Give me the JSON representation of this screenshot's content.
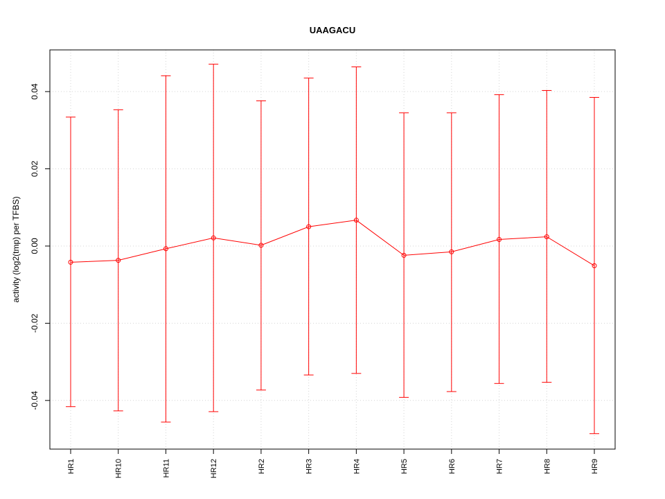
{
  "chart_data": {
    "type": "line",
    "title": "UAAGACU",
    "xlabel": "",
    "ylabel": "activity (log2(tmp) per TFBS)",
    "categories": [
      "HR1",
      "HR10",
      "HR11",
      "HR12",
      "HR2",
      "HR3",
      "HR4",
      "HR5",
      "HR6",
      "HR7",
      "HR8",
      "HR9"
    ],
    "series": [
      {
        "values": [
          -0.0042,
          -0.0037,
          -0.0007,
          0.0021,
          0.0002,
          0.005,
          0.0067,
          -0.0024,
          -0.0015,
          0.0017,
          0.0024,
          -0.0051
        ],
        "upper": [
          0.0334,
          0.0353,
          0.0441,
          0.0471,
          0.0376,
          0.0435,
          0.0464,
          0.0345,
          0.0345,
          0.0392,
          0.0403,
          0.0385
        ],
        "lower": [
          -0.0416,
          -0.0427,
          -0.0456,
          -0.0429,
          -0.0373,
          -0.0334,
          -0.033,
          -0.0392,
          -0.0377,
          -0.0356,
          -0.0353,
          -0.0486
        ]
      }
    ],
    "ylim": [
      -0.0526,
      0.0508
    ],
    "yticks": [
      -0.04,
      -0.02,
      0.0,
      0.02,
      0.04
    ],
    "ytick_labels": [
      "-0.04",
      "-0.02",
      "0.00",
      "0.02",
      "0.04"
    ],
    "grid": true,
    "line_color": "#ff0000",
    "grid_color": "#d3d3d3"
  }
}
